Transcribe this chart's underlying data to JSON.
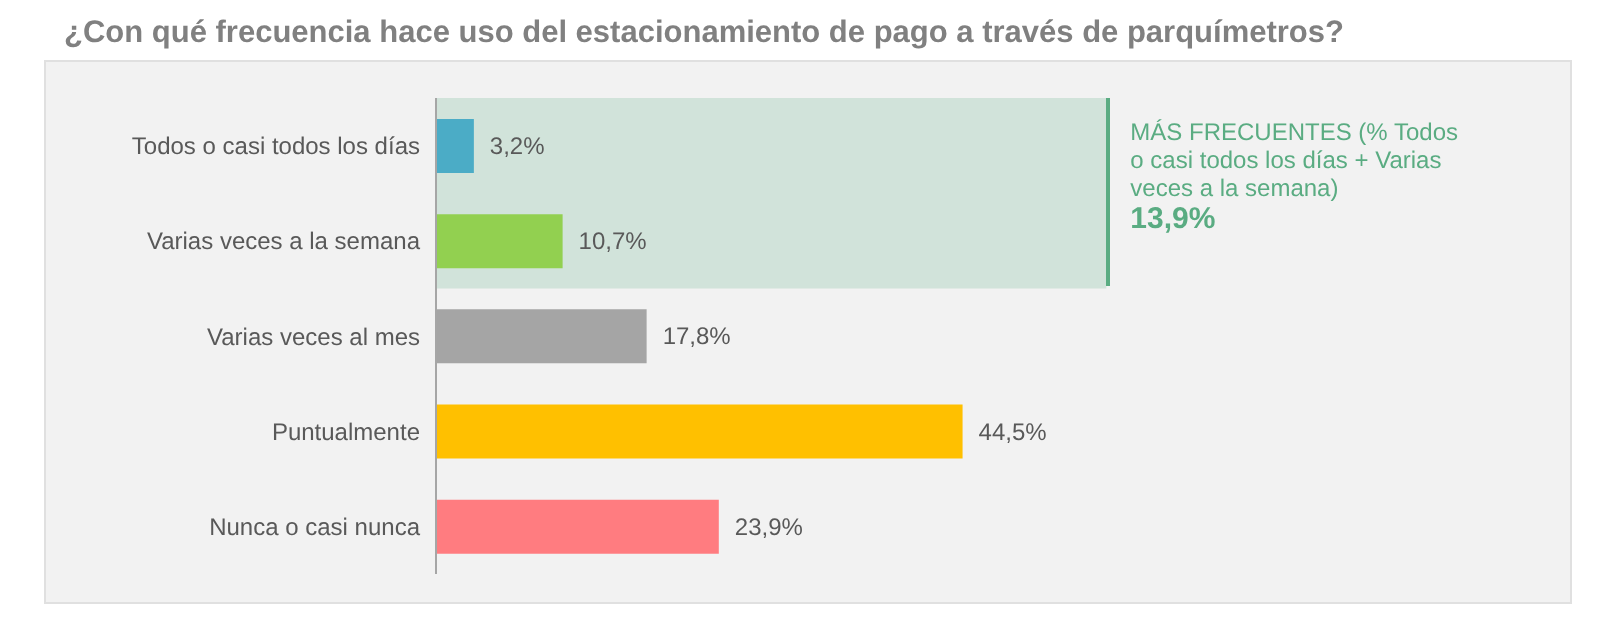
{
  "chart_data": {
    "type": "bar",
    "orientation": "horizontal",
    "title": "¿Con qué frecuencia hace uso del estacionamiento de pago a través de parquímetros?",
    "categories": [
      "Todos o casi todos los días",
      "Varias veces a la semana",
      "Varias veces al mes",
      "Puntualmente",
      "Nunca o casi nunca"
    ],
    "values": [
      3.2,
      10.7,
      17.8,
      44.5,
      23.9
    ],
    "colors": [
      "#4bacc6",
      "#92d050",
      "#a5a5a5",
      "#ffc000",
      "#ff7c80"
    ],
    "value_labels": [
      "3,2%",
      "10,7%",
      "17,8%",
      "44,5%",
      "23,9%"
    ],
    "bands": [
      {
        "axis": "y",
        "from": "Todos o casi todos los días",
        "to": "Varias veces a la semana",
        "label": "MÁS FRECUENTES (% Todos o casi todos los días + Varias veces a la semana)",
        "color": "#5aac82"
      }
    ],
    "annotations": [
      "13,9%"
    ]
  }
}
